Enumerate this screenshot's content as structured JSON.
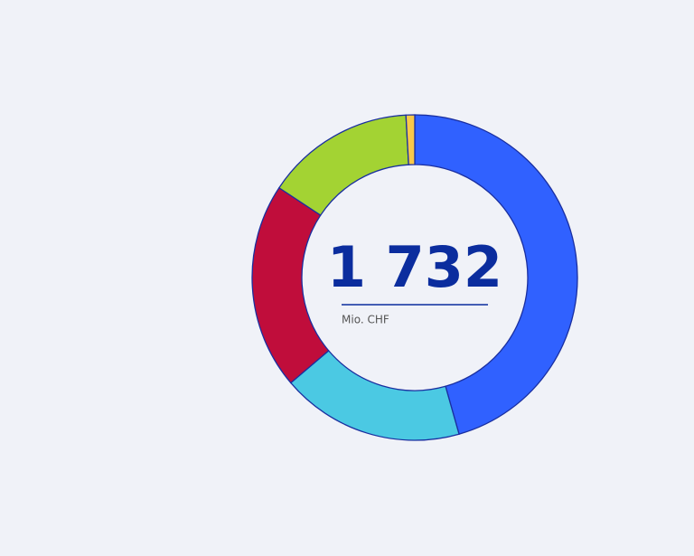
{
  "chart_data": {
    "type": "donut",
    "values": [
      790,
      315,
      355,
      257,
      15
    ],
    "colors": [
      "#3061ff",
      "#4bc9e3",
      "#c00d3b",
      "#a3d333",
      "#f8c94a"
    ],
    "total": {
      "value": 1732,
      "label": "1 732"
    },
    "unit": "Mio. CHF"
  }
}
